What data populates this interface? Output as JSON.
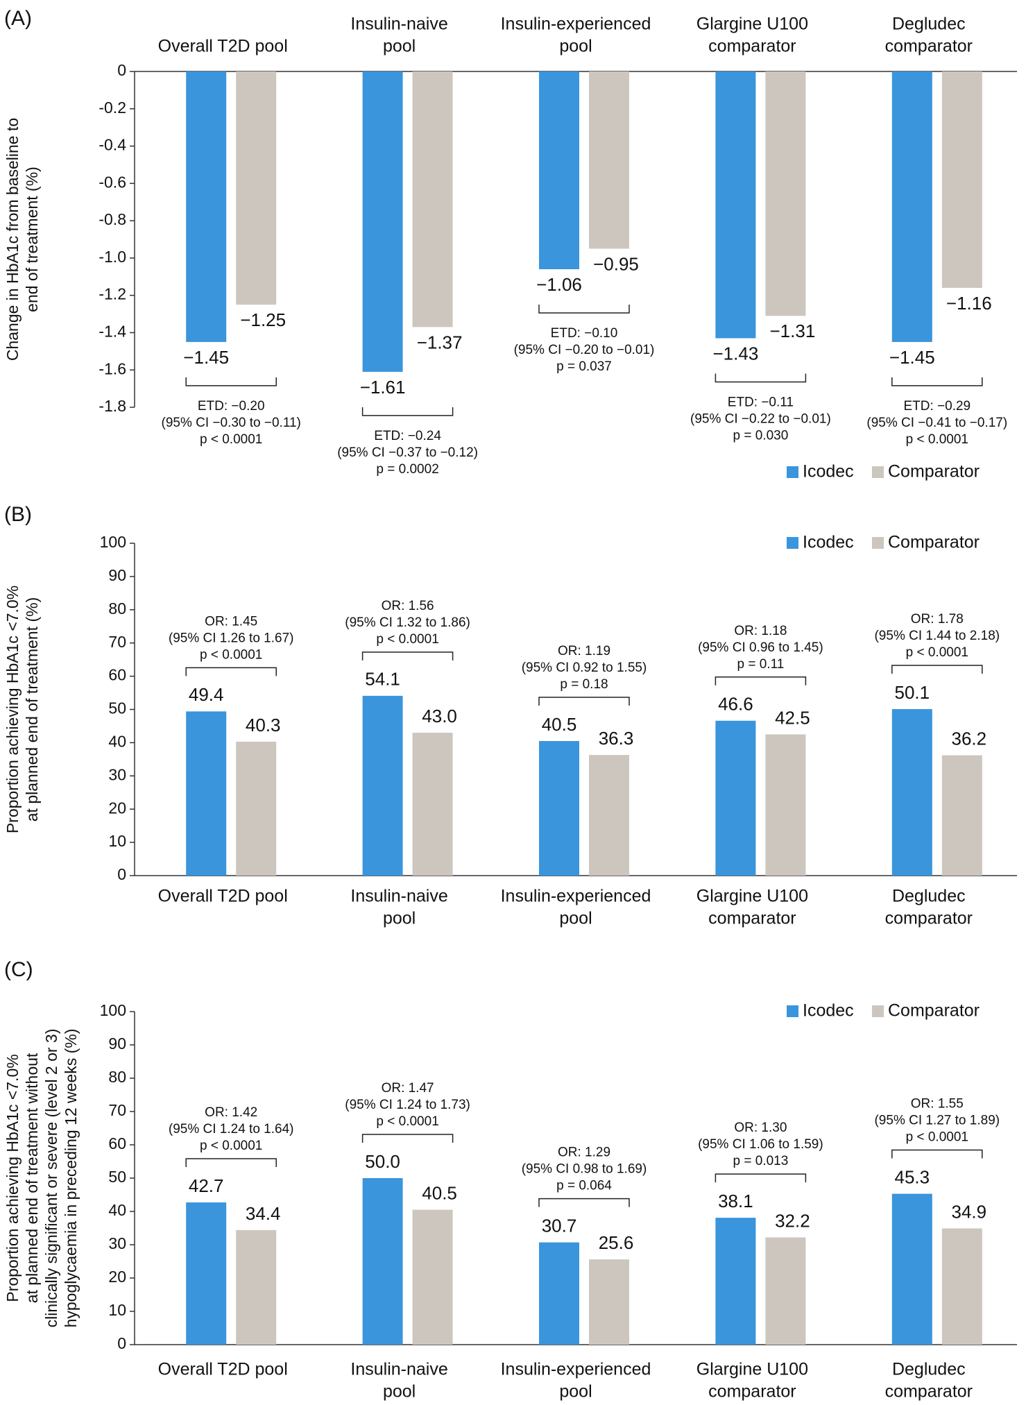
{
  "chart_data": [
    {
      "type": "bar",
      "panel_label": "(A)",
      "ylabel": [
        "Change in HbA1c from baseline to",
        "end of treatment (%)"
      ],
      "categories": [
        [
          "Overall T2D pool"
        ],
        [
          "Insulin-naive",
          "pool"
        ],
        [
          "Insulin-experienced",
          "pool"
        ],
        [
          "Glargine U100",
          "comparator"
        ],
        [
          "Degludec",
          "comparator"
        ]
      ],
      "series": [
        {
          "name": "Icodec",
          "color": "#3a95dc",
          "values": [
            -1.45,
            -1.61,
            -1.06,
            -1.43,
            -1.45
          ],
          "value_labels": [
            "−1.45",
            "−1.61",
            "−1.06",
            "−1.43",
            "−1.45"
          ]
        },
        {
          "name": "Comparator",
          "color": "#cdc6be",
          "values": [
            -1.25,
            -1.37,
            -0.95,
            -1.31,
            -1.16
          ],
          "value_labels": [
            "−1.25",
            "−1.37",
            "−0.95",
            "−1.31",
            "−1.16"
          ]
        }
      ],
      "annotations": [
        {
          "lines": [
            "ETD: −0.20",
            "(95% CI −0.30 to −0.11)",
            "p < 0.0001"
          ]
        },
        {
          "lines": [
            "ETD: −0.24",
            "(95% CI −0.37 to −0.12)",
            "p = 0.0002"
          ]
        },
        {
          "lines": [
            "ETD: −0.10",
            "(95% CI −0.20 to −0.01)",
            "p = 0.037"
          ]
        },
        {
          "lines": [
            "ETD: −0.11",
            "(95% CI −0.22 to −0.01)",
            "p = 0.030"
          ]
        },
        {
          "lines": [
            "ETD: −0.29",
            "(95% CI −0.41 to −0.17)",
            "p < 0.0001"
          ]
        }
      ],
      "ylim": [
        -1.8,
        0
      ],
      "yticks": [
        0,
        -0.2,
        -0.4,
        -0.6,
        -0.8,
        {
          "value": -1,
          "label": "-1.0"
        },
        -1.2,
        -1.4,
        -1.6,
        -1.8
      ],
      "legend": "lower right"
    },
    {
      "type": "bar",
      "panel_label": "(B)",
      "ylabel": [
        "Proportion achieving HbA1c <7.0%",
        "at planned end of treatment (%)"
      ],
      "categories": [
        [
          "Overall T2D pool"
        ],
        [
          "Insulin-naive",
          "pool"
        ],
        [
          "Insulin-experienced",
          "pool"
        ],
        [
          "Glargine U100",
          "comparator"
        ],
        [
          "Degludec",
          "comparator"
        ]
      ],
      "series": [
        {
          "name": "Icodec",
          "color": "#3a95dc",
          "values": [
            49.4,
            54.1,
            40.5,
            46.6,
            50.1
          ],
          "value_labels": [
            "49.4",
            "54.1",
            "40.5",
            "46.6",
            "50.1"
          ]
        },
        {
          "name": "Comparator",
          "color": "#cdc6be",
          "values": [
            40.3,
            43.0,
            36.3,
            42.5,
            36.2
          ],
          "value_labels": [
            "40.3",
            "43.0",
            "36.3",
            "42.5",
            "36.2"
          ]
        }
      ],
      "annotations": [
        {
          "lines": [
            "OR: 1.45",
            "(95% CI 1.26 to 1.67)",
            "p < 0.0001"
          ]
        },
        {
          "lines": [
            "OR: 1.56",
            "(95% CI 1.32 to 1.86)",
            "p < 0.0001"
          ]
        },
        {
          "lines": [
            "OR: 1.19",
            "(95% CI 0.92 to 1.55)",
            "p = 0.18"
          ]
        },
        {
          "lines": [
            "OR: 1.18",
            "(95% CI 0.96 to 1.45)",
            "p = 0.11"
          ]
        },
        {
          "lines": [
            "OR: 1.78",
            "(95% CI 1.44 to 2.18)",
            "p < 0.0001"
          ]
        }
      ],
      "ylim": [
        0,
        100
      ],
      "yticks": [
        0,
        10,
        20,
        30,
        40,
        50,
        60,
        70,
        80,
        90,
        100
      ],
      "legend": "upper right"
    },
    {
      "type": "bar",
      "panel_label": "(C)",
      "ylabel": [
        "Proportion achieving HbA1c <7.0%",
        "at planned end of treatment without",
        "clinically significant or severe (level 2 or 3)",
        "hypoglycaemia in preceding 12 weeks (%)"
      ],
      "categories": [
        [
          "Overall T2D pool"
        ],
        [
          "Insulin-naive",
          "pool"
        ],
        [
          "Insulin-experienced",
          "pool"
        ],
        [
          "Glargine U100",
          "comparator"
        ],
        [
          "Degludec",
          "comparator"
        ]
      ],
      "series": [
        {
          "name": "Icodec",
          "color": "#3a95dc",
          "values": [
            42.7,
            50.0,
            30.7,
            38.1,
            45.3
          ],
          "value_labels": [
            "42.7",
            "50.0",
            "30.7",
            "38.1",
            "45.3"
          ]
        },
        {
          "name": "Comparator",
          "color": "#cdc6be",
          "values": [
            34.4,
            40.5,
            25.6,
            32.2,
            34.9
          ],
          "value_labels": [
            "34.4",
            "40.5",
            "25.6",
            "32.2",
            "34.9"
          ]
        }
      ],
      "annotations": [
        {
          "lines": [
            "OR: 1.42",
            "(95% CI 1.24 to 1.64)",
            "p < 0.0001"
          ]
        },
        {
          "lines": [
            "OR: 1.47",
            "(95% CI 1.24 to 1.73)",
            "p < 0.0001"
          ]
        },
        {
          "lines": [
            "OR: 1.29",
            "(95% CI 0.98 to 1.69)",
            "p = 0.064"
          ]
        },
        {
          "lines": [
            "OR: 1.30",
            "(95% CI 1.06 to 1.59)",
            "p = 0.013"
          ]
        },
        {
          "lines": [
            "OR: 1.55",
            "(95% CI 1.27 to 1.89)",
            "p < 0.0001"
          ]
        }
      ],
      "ylim": [
        0,
        100
      ],
      "yticks": [
        0,
        10,
        20,
        30,
        40,
        50,
        60,
        70,
        80,
        90,
        100
      ],
      "legend": "upper right"
    }
  ]
}
